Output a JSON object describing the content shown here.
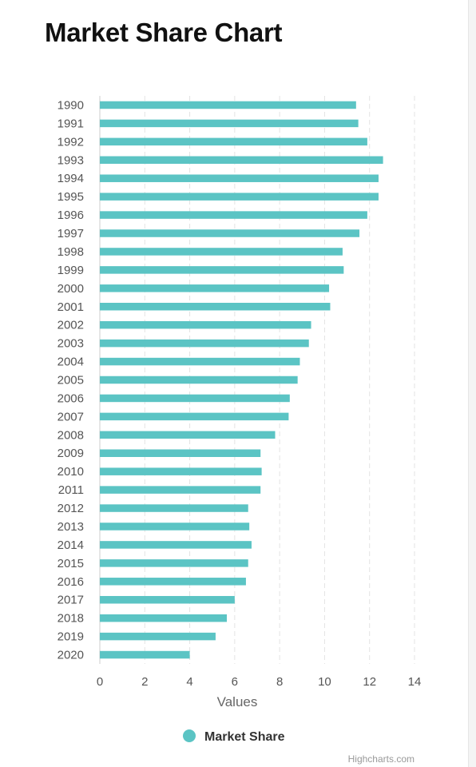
{
  "chart_data": {
    "type": "bar",
    "orientation": "horizontal",
    "title": "Market Share Chart",
    "xlabel": "Values",
    "ylabel": "",
    "xlim": [
      0,
      14
    ],
    "x_ticks": [
      0,
      2,
      4,
      6,
      8,
      10,
      12,
      14
    ],
    "grid": true,
    "legend_position": "bottom-center",
    "color": "#5bc4c4",
    "categories": [
      "1990",
      "1991",
      "1992",
      "1993",
      "1994",
      "1995",
      "1996",
      "1997",
      "1998",
      "1999",
      "2000",
      "2001",
      "2002",
      "2003",
      "2004",
      "2005",
      "2006",
      "2007",
      "2008",
      "2009",
      "2010",
      "2011",
      "2012",
      "2013",
      "2014",
      "2015",
      "2016",
      "2017",
      "2018",
      "2019",
      "2020"
    ],
    "series": [
      {
        "name": "Market Share",
        "values": [
          11.4,
          11.5,
          11.9,
          12.6,
          12.4,
          12.4,
          11.9,
          11.55,
          10.8,
          10.85,
          10.2,
          10.25,
          9.4,
          9.3,
          8.9,
          8.8,
          8.45,
          8.4,
          7.8,
          7.15,
          7.2,
          7.15,
          6.6,
          6.65,
          6.75,
          6.6,
          6.5,
          6.0,
          5.65,
          5.15,
          4.0
        ]
      }
    ],
    "credit": "Highcharts.com"
  }
}
